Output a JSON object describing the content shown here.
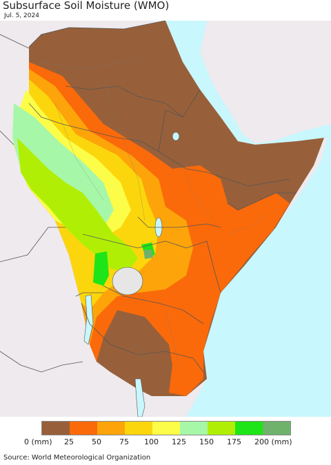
{
  "header": {
    "title": "Subsurface Soil Moisture (WMO)",
    "date": "Jul. 5, 2024"
  },
  "legend": {
    "colors": [
      "#97603a",
      "#fb6a0a",
      "#fca40a",
      "#fcd60c",
      "#fcfd48",
      "#a7f7a9",
      "#b0ef05",
      "#1ee517",
      "#6fb26b"
    ],
    "labels": [
      "0 (mm)",
      "25",
      "50",
      "75",
      "100",
      "125",
      "150",
      "175",
      "200 (mm)"
    ]
  },
  "map_colors": {
    "land_outside": "#eeeaee",
    "sea": "#c8f7fd",
    "lake": "#e6e6e6",
    "border": "#555555"
  },
  "footer": {
    "source": "Source: World Meteorological Organization"
  }
}
